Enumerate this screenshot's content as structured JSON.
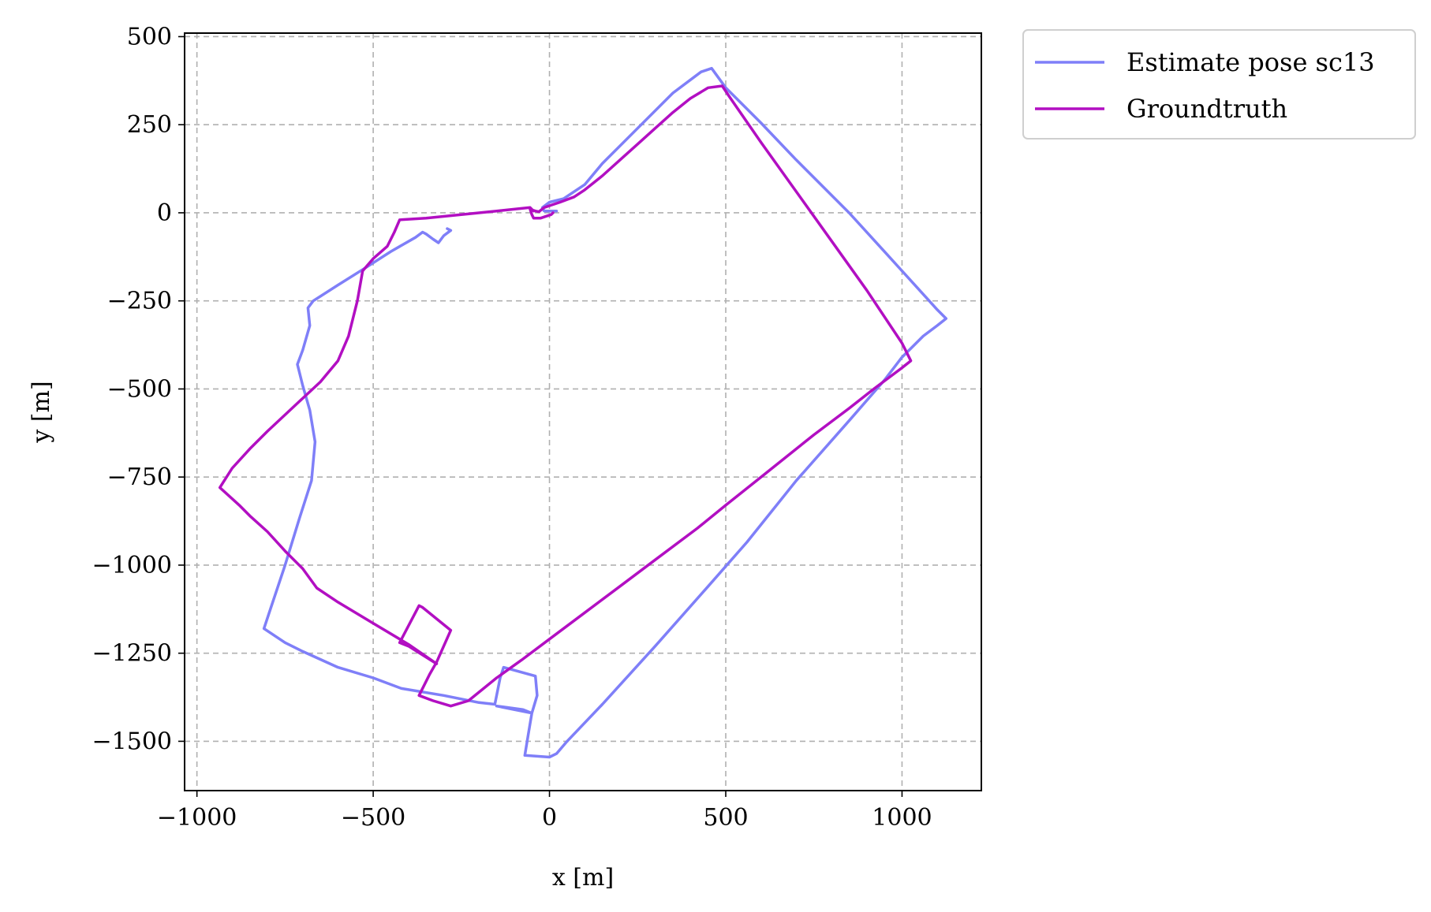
{
  "chart_data": {
    "type": "line",
    "title": "",
    "xlabel": "x [m]",
    "ylabel": "y [m]",
    "xlim": [
      -1035,
      1225
    ],
    "ylim": [
      -1640,
      510
    ],
    "grid": true,
    "legend_position": "outside-top-right",
    "x_ticks": [
      -1000,
      -500,
      0,
      500,
      1000
    ],
    "x_tick_labels": [
      "−1000",
      "−500",
      "0",
      "500",
      "1000"
    ],
    "y_ticks": [
      500,
      250,
      0,
      -250,
      -500,
      -750,
      -1000,
      -1250,
      -1500
    ],
    "y_tick_labels": [
      "500",
      "250",
      "0",
      "−250",
      "−500",
      "−750",
      "−1000",
      "−1250",
      "−1500"
    ],
    "series": [
      {
        "name": "Estimate pose sc13",
        "color": "#7f7ff8",
        "points": [
          [
            -290,
            -45
          ],
          [
            -280,
            -50
          ],
          [
            -300,
            -65
          ],
          [
            -315,
            -85
          ],
          [
            -330,
            -75
          ],
          [
            -350,
            -60
          ],
          [
            -360,
            -55
          ],
          [
            -380,
            -70
          ],
          [
            -450,
            -110
          ],
          [
            -520,
            -155
          ],
          [
            -600,
            -205
          ],
          [
            -670,
            -250
          ],
          [
            -685,
            -270
          ],
          [
            -680,
            -320
          ],
          [
            -700,
            -390
          ],
          [
            -715,
            -430
          ],
          [
            -700,
            -490
          ],
          [
            -680,
            -560
          ],
          [
            -665,
            -650
          ],
          [
            -675,
            -760
          ],
          [
            -710,
            -870
          ],
          [
            -750,
            -1000
          ],
          [
            -790,
            -1120
          ],
          [
            -810,
            -1180
          ],
          [
            -750,
            -1220
          ],
          [
            -700,
            -1245
          ],
          [
            -600,
            -1290
          ],
          [
            -500,
            -1320
          ],
          [
            -420,
            -1350
          ],
          [
            -300,
            -1370
          ],
          [
            -200,
            -1390
          ],
          [
            -155,
            -1395
          ],
          [
            -140,
            -1320
          ],
          [
            -130,
            -1290
          ],
          [
            -40,
            -1315
          ],
          [
            -35,
            -1370
          ],
          [
            -50,
            -1420
          ],
          [
            -75,
            -1410
          ],
          [
            -150,
            -1400
          ],
          [
            -50,
            -1420
          ],
          [
            -60,
            -1480
          ],
          [
            -70,
            -1540
          ],
          [
            0,
            -1545
          ],
          [
            20,
            -1535
          ],
          [
            50,
            -1500
          ],
          [
            150,
            -1395
          ],
          [
            300,
            -1230
          ],
          [
            450,
            -1060
          ],
          [
            560,
            -935
          ],
          [
            700,
            -760
          ],
          [
            850,
            -590
          ],
          [
            950,
            -475
          ],
          [
            1000,
            -410
          ],
          [
            1060,
            -350
          ],
          [
            1100,
            -320
          ],
          [
            1125,
            -300
          ],
          [
            1100,
            -275
          ],
          [
            1050,
            -220
          ],
          [
            950,
            -110
          ],
          [
            850,
            0
          ],
          [
            700,
            150
          ],
          [
            600,
            255
          ],
          [
            500,
            355
          ],
          [
            460,
            410
          ],
          [
            430,
            400
          ],
          [
            350,
            340
          ],
          [
            250,
            240
          ],
          [
            150,
            140
          ],
          [
            100,
            80
          ],
          [
            40,
            40
          ],
          [
            0,
            30
          ],
          [
            -20,
            15
          ],
          [
            -15,
            5
          ],
          [
            5,
            5
          ],
          [
            20,
            5
          ]
        ]
      },
      {
        "name": "Groundtruth",
        "color": "#b20fc2",
        "points": [
          [
            10,
            0
          ],
          [
            5,
            -5
          ],
          [
            -10,
            -10
          ],
          [
            -25,
            -15
          ],
          [
            -45,
            -15
          ],
          [
            -50,
            -5
          ],
          [
            -55,
            10
          ],
          [
            -40,
            5
          ],
          [
            -30,
            3
          ],
          [
            -15,
            15
          ],
          [
            0,
            20
          ],
          [
            30,
            30
          ],
          [
            70,
            45
          ],
          [
            100,
            65
          ],
          [
            150,
            105
          ],
          [
            200,
            150
          ],
          [
            250,
            195
          ],
          [
            300,
            240
          ],
          [
            350,
            285
          ],
          [
            400,
            325
          ],
          [
            450,
            355
          ],
          [
            490,
            360
          ],
          [
            510,
            330
          ],
          [
            600,
            200
          ],
          [
            700,
            60
          ],
          [
            800,
            -80
          ],
          [
            900,
            -220
          ],
          [
            1000,
            -370
          ],
          [
            1025,
            -420
          ],
          [
            1000,
            -440
          ],
          [
            920,
            -500
          ],
          [
            850,
            -555
          ],
          [
            750,
            -630
          ],
          [
            600,
            -750
          ],
          [
            500,
            -830
          ],
          [
            420,
            -895
          ],
          [
            300,
            -985
          ],
          [
            200,
            -1060
          ],
          [
            100,
            -1135
          ],
          [
            0,
            -1210
          ],
          [
            -80,
            -1270
          ],
          [
            -150,
            -1320
          ],
          [
            -230,
            -1385
          ],
          [
            -280,
            -1400
          ],
          [
            -330,
            -1385
          ],
          [
            -370,
            -1370
          ],
          [
            -340,
            -1310
          ],
          [
            -320,
            -1275
          ],
          [
            -280,
            -1185
          ],
          [
            -360,
            -1120
          ],
          [
            -370,
            -1115
          ],
          [
            -425,
            -1220
          ],
          [
            -400,
            -1230
          ],
          [
            -320,
            -1280
          ],
          [
            -400,
            -1225
          ],
          [
            -500,
            -1165
          ],
          [
            -600,
            -1105
          ],
          [
            -660,
            -1065
          ],
          [
            -700,
            -1010
          ],
          [
            -750,
            -960
          ],
          [
            -800,
            -905
          ],
          [
            -850,
            -860
          ],
          [
            -880,
            -830
          ],
          [
            -935,
            -780
          ],
          [
            -900,
            -725
          ],
          [
            -850,
            -670
          ],
          [
            -800,
            -620
          ],
          [
            -720,
            -545
          ],
          [
            -650,
            -480
          ],
          [
            -600,
            -420
          ],
          [
            -570,
            -350
          ],
          [
            -545,
            -250
          ],
          [
            -530,
            -165
          ],
          [
            -500,
            -130
          ],
          [
            -460,
            -95
          ],
          [
            -440,
            -55
          ],
          [
            -425,
            -20
          ],
          [
            -350,
            -15
          ],
          [
            -250,
            -5
          ],
          [
            -150,
            5
          ],
          [
            -55,
            15
          ],
          [
            -45,
            5
          ]
        ]
      }
    ]
  }
}
